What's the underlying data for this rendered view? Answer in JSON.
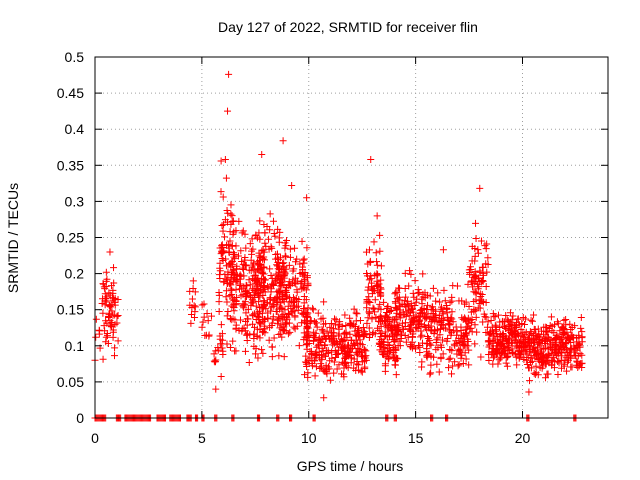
{
  "chart_data": {
    "type": "scatter",
    "title": "Day 127 of 2022, SRMTID for receiver flin",
    "xlabel": "GPS time / hours",
    "ylabel": "SRMTID / TECUs",
    "xlim": [
      0,
      24
    ],
    "ylim": [
      0,
      0.5
    ],
    "xticks": [
      "0",
      "5",
      "10",
      "15",
      "20"
    ],
    "yticks": [
      "0",
      "0.05",
      "0.1",
      "0.15",
      "0.2",
      "0.25",
      "0.3",
      "0.35",
      "0.4",
      "0.45",
      "0.5"
    ],
    "grid": true,
    "marker": "plus",
    "color": "#ff0000",
    "highlight_points": [
      [
        6.25,
        0.476
      ],
      [
        6.2,
        0.425
      ],
      [
        8.8,
        0.384
      ],
      [
        7.8,
        0.365
      ],
      [
        12.9,
        0.358
      ],
      [
        5.9,
        0.356
      ],
      [
        6.1,
        0.358
      ],
      [
        9.2,
        0.322
      ],
      [
        18.0,
        0.318
      ],
      [
        9.9,
        0.305
      ],
      [
        13.2,
        0.28
      ],
      [
        4.6,
        0.19
      ],
      [
        0.7,
        0.23
      ],
      [
        16.3,
        0.233
      ],
      [
        5.65,
        0.04
      ],
      [
        20.3,
        0.036
      ],
      [
        10.7,
        0.028
      ],
      [
        0.0,
        0.08
      ]
    ],
    "clusters": [
      {
        "x": [
          0.0,
          0.3
        ],
        "y": [
          0.07,
          0.15
        ],
        "n": 6
      },
      {
        "x": [
          0.3,
          1.1
        ],
        "y": [
          0.06,
          0.23
        ],
        "n": 70
      },
      {
        "x": [
          4.4,
          4.7
        ],
        "y": [
          0.12,
          0.19
        ],
        "n": 12
      },
      {
        "x": [
          5.0,
          5.5
        ],
        "y": [
          0.1,
          0.18
        ],
        "n": 12
      },
      {
        "x": [
          5.5,
          6.0
        ],
        "y": [
          0.04,
          0.15
        ],
        "n": 18
      },
      {
        "x": [
          5.8,
          6.5
        ],
        "y": [
          0.08,
          0.36
        ],
        "n": 80
      },
      {
        "x": [
          6.3,
          8.0
        ],
        "y": [
          0.06,
          0.3
        ],
        "n": 220
      },
      {
        "x": [
          7.5,
          9.0
        ],
        "y": [
          0.05,
          0.3
        ],
        "n": 160
      },
      {
        "x": [
          8.5,
          10.0
        ],
        "y": [
          0.06,
          0.27
        ],
        "n": 160
      },
      {
        "x": [
          9.8,
          11.5
        ],
        "y": [
          0.03,
          0.17
        ],
        "n": 160
      },
      {
        "x": [
          11.5,
          12.7
        ],
        "y": [
          0.04,
          0.16
        ],
        "n": 130
      },
      {
        "x": [
          12.7,
          13.4
        ],
        "y": [
          0.06,
          0.3
        ],
        "n": 80
      },
      {
        "x": [
          13.3,
          14.2
        ],
        "y": [
          0.04,
          0.18
        ],
        "n": 110
      },
      {
        "x": [
          14.0,
          15.5
        ],
        "y": [
          0.06,
          0.22
        ],
        "n": 150
      },
      {
        "x": [
          15.5,
          17.5
        ],
        "y": [
          0.04,
          0.2
        ],
        "n": 190
      },
      {
        "x": [
          17.5,
          18.4
        ],
        "y": [
          0.07,
          0.3
        ],
        "n": 90
      },
      {
        "x": [
          18.4,
          20.0
        ],
        "y": [
          0.06,
          0.16
        ],
        "n": 190
      },
      {
        "x": [
          20.0,
          21.5
        ],
        "y": [
          0.04,
          0.15
        ],
        "n": 170
      },
      {
        "x": [
          21.5,
          22.8
        ],
        "y": [
          0.05,
          0.15
        ],
        "n": 140
      }
    ],
    "zero_runs": [
      [
        0.0,
        0.5
      ],
      [
        1.0,
        1.2
      ],
      [
        1.4,
        2.6
      ],
      [
        2.9,
        3.3
      ],
      [
        3.5,
        4.0
      ],
      [
        4.3,
        4.5
      ],
      [
        4.7,
        4.8
      ],
      [
        5.0,
        5.1
      ],
      [
        5.6,
        5.7
      ],
      [
        6.4,
        6.5
      ],
      [
        7.6,
        7.7
      ],
      [
        8.5,
        8.6
      ],
      [
        9.1,
        9.2
      ],
      [
        10.2,
        10.3
      ],
      [
        13.6,
        13.7
      ],
      [
        14.0,
        14.1
      ],
      [
        15.7,
        15.8
      ],
      [
        16.4,
        16.5
      ],
      [
        20.2,
        20.3
      ],
      [
        22.4,
        22.5
      ]
    ]
  }
}
